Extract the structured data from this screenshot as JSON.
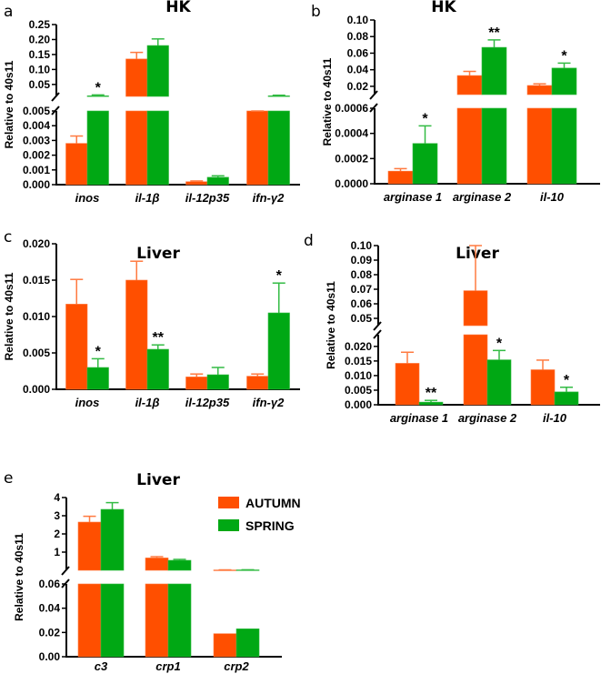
{
  "colors": {
    "autumn": "#FF4F00",
    "spring": "#00A814",
    "autumn_err": "#FF7A40",
    "spring_err": "#33BB44"
  },
  "legend": [
    {
      "label": "AUTUMN",
      "color": "#FF4F00"
    },
    {
      "label": "SPRING",
      "color": "#00A814"
    }
  ],
  "chart_data": [
    {
      "type": "bar",
      "panel": "a",
      "title": "HK",
      "ylabel": "Relative to 40s11",
      "categories": [
        "inos",
        "il-1β",
        "il-12p35",
        "ifn-γ2"
      ],
      "broken_axis": true,
      "segments": [
        {
          "ylim": [
            0,
            0.005
          ],
          "ticks": [
            0,
            0.001,
            0.002,
            0.003,
            0.004,
            0.005
          ],
          "tick_labels": [
            "0.000",
            "0.001",
            "0.002",
            "0.003",
            "0.004",
            "0.005"
          ]
        },
        {
          "ylim": [
            0.01,
            0.25
          ],
          "ticks": [
            0.05,
            0.1,
            0.15,
            0.2,
            0.25
          ],
          "tick_labels": [
            "0.05",
            "0.10",
            "0.15",
            "0.20",
            "0.25"
          ]
        }
      ],
      "series": [
        {
          "name": "AUTUMN",
          "values": [
            0.0028,
            0.135,
            0.0002,
            0.008
          ],
          "error_top": [
            0.0033,
            0.157,
            0.00025,
            0.0085
          ]
        },
        {
          "name": "SPRING",
          "values": [
            0.012,
            0.18,
            0.0005,
            0.012
          ],
          "error_top": [
            0.015,
            0.202,
            0.0006,
            0.014
          ]
        }
      ],
      "significance": [
        {
          "category": 0,
          "series": 1,
          "label": "*"
        }
      ]
    },
    {
      "type": "bar",
      "panel": "b",
      "title": "HK",
      "ylabel": "Relative to 40s11",
      "categories": [
        "arginase 1",
        "arginase 2",
        "il-10"
      ],
      "broken_axis": true,
      "segments": [
        {
          "ylim": [
            0,
            0.0006
          ],
          "ticks": [
            0,
            0.0002,
            0.0004,
            0.0006
          ],
          "tick_labels": [
            "0.0000",
            "0.0002",
            "0.0004",
            "0.0006"
          ]
        },
        {
          "ylim": [
            0.01,
            0.1
          ],
          "ticks": [
            0.02,
            0.04,
            0.06,
            0.08,
            0.1
          ],
          "tick_labels": [
            "0.02",
            "0.04",
            "0.06",
            "0.08",
            "0.10"
          ]
        }
      ],
      "series": [
        {
          "name": "AUTUMN",
          "values": [
            0.0001,
            0.033,
            0.021
          ],
          "error_top": [
            0.00012,
            0.038,
            0.023
          ]
        },
        {
          "name": "SPRING",
          "values": [
            0.00032,
            0.067,
            0.042
          ],
          "error_top": [
            0.00046,
            0.076,
            0.048
          ]
        }
      ],
      "significance": [
        {
          "category": 0,
          "series": 1,
          "label": "*"
        },
        {
          "category": 1,
          "series": 1,
          "label": "**"
        },
        {
          "category": 2,
          "series": 1,
          "label": "*"
        }
      ]
    },
    {
      "type": "bar",
      "panel": "c",
      "title": "Liver",
      "ylabel": "Relative to 40s11",
      "categories": [
        "inos",
        "il-1β",
        "il-12p35",
        "ifn-γ2"
      ],
      "broken_axis": false,
      "segments": [
        {
          "ylim": [
            0,
            0.02
          ],
          "ticks": [
            0,
            0.005,
            0.01,
            0.015,
            0.02
          ],
          "tick_labels": [
            "0.000",
            "0.005",
            "0.010",
            "0.015",
            "0.020"
          ]
        }
      ],
      "series": [
        {
          "name": "AUTUMN",
          "values": [
            0.0117,
            0.015,
            0.0017,
            0.0018
          ],
          "error_top": [
            0.0151,
            0.0176,
            0.0021,
            0.0021
          ]
        },
        {
          "name": "SPRING",
          "values": [
            0.003,
            0.0055,
            0.002,
            0.0105
          ],
          "error_top": [
            0.0042,
            0.0061,
            0.003,
            0.0146
          ]
        }
      ],
      "significance": [
        {
          "category": 0,
          "series": 1,
          "label": "*"
        },
        {
          "category": 1,
          "series": 1,
          "label": "**"
        },
        {
          "category": 3,
          "series": 1,
          "label": "*"
        }
      ]
    },
    {
      "type": "bar",
      "panel": "d",
      "title": "Liver",
      "ylabel": "Relative to 40s11",
      "categories": [
        "arginase 1",
        "arginase 2",
        "il-10"
      ],
      "broken_axis": true,
      "segments": [
        {
          "ylim": [
            0,
            0.024
          ],
          "ticks": [
            0,
            0.005,
            0.01,
            0.015,
            0.02
          ],
          "tick_labels": [
            "0.000",
            "0.005",
            "0.010",
            "0.015",
            "0.020"
          ]
        },
        {
          "ylim": [
            0.045,
            0.1
          ],
          "ticks": [
            0.05,
            0.06,
            0.07,
            0.08,
            0.09,
            0.1
          ],
          "tick_labels": [
            "0.05",
            "0.06",
            "0.07",
            "0.08",
            "0.09",
            "0.10"
          ]
        }
      ],
      "series": [
        {
          "name": "AUTUMN",
          "values": [
            0.0142,
            0.069,
            0.012
          ],
          "error_top": [
            0.018,
            0.1,
            0.0153
          ]
        },
        {
          "name": "SPRING",
          "values": [
            0.0009,
            0.0154,
            0.0044
          ],
          "error_top": [
            0.0015,
            0.0186,
            0.006
          ]
        }
      ],
      "significance": [
        {
          "category": 0,
          "series": 1,
          "label": "**"
        },
        {
          "category": 1,
          "series": 1,
          "label": "*"
        },
        {
          "category": 2,
          "series": 1,
          "label": "*"
        }
      ]
    },
    {
      "type": "bar",
      "panel": "e",
      "title": "Liver",
      "ylabel": "Relative to 40s11",
      "categories": [
        "c3",
        "crp1",
        "crp2"
      ],
      "broken_axis": true,
      "segments": [
        {
          "ylim": [
            0,
            0.06
          ],
          "ticks": [
            0,
            0.02,
            0.04,
            0.06
          ],
          "tick_labels": [
            "0.00",
            "0.02",
            "0.04",
            "0.06"
          ]
        },
        {
          "ylim": [
            0,
            4
          ],
          "ticks": [
            1,
            2,
            3,
            4
          ],
          "tick_labels": [
            "1",
            "2",
            "3",
            "4"
          ]
        }
      ],
      "series": [
        {
          "name": "AUTUMN",
          "values": [
            2.65,
            0.68,
            0.019
          ],
          "error_top": [
            2.97,
            0.75,
            0.0245
          ]
        },
        {
          "name": "SPRING",
          "values": [
            3.35,
            0.55,
            0.023
          ],
          "error_top": [
            3.72,
            0.6,
            0.029
          ]
        }
      ],
      "significance": []
    }
  ]
}
